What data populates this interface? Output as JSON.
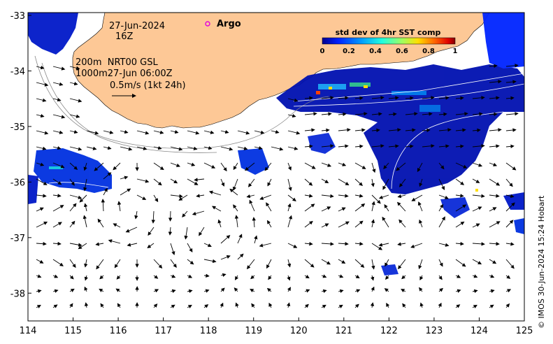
{
  "map": {
    "lon_ticks": [
      "114",
      "115",
      "116",
      "117",
      "118",
      "119",
      "120",
      "121",
      "122",
      "123",
      "124",
      "125"
    ],
    "lat_ticks": [
      "-33",
      "-34",
      "-35",
      "-36",
      "-37",
      "-38"
    ],
    "lon_range": [
      114,
      125
    ],
    "lat_range": [
      -38.5,
      -32.95
    ],
    "land_color": "#fdc896",
    "ocean_color": "#ffffff"
  },
  "annotations": {
    "date": "27-Jun-2024",
    "hour": "16Z",
    "line1": "200m  NRT00 GSL",
    "line2": "1000m27-Jun 06:00Z",
    "scale": "0.5m/s (1kt 24h)",
    "argo": "Argo"
  },
  "colorbar": {
    "title": "std dev of 4hr SST comp",
    "ticks": [
      "0",
      "0.2",
      "0.4",
      "0.6",
      "0.8",
      "1"
    ],
    "colors": [
      "#00008f",
      "#0020ff",
      "#00a0ff",
      "#20ffdf",
      "#9fff60",
      "#ffdf00",
      "#ff6000",
      "#df0000",
      "#800000"
    ]
  },
  "credit": "© IMOS 30-Jun-2024 15:24 Hobart"
}
